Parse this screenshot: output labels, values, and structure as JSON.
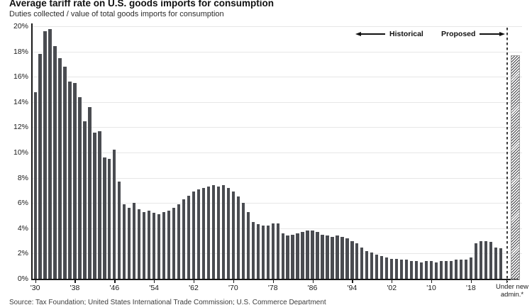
{
  "header": {
    "title": "Average tariff rate on U.S. goods imports for consumption",
    "subtitle": "Duties collected / value of total goods imports for consumption"
  },
  "annotations": {
    "historical_label": "Historical",
    "proposed_label": "Proposed",
    "under_new_admin_line1": "Under new",
    "under_new_admin_line2": "admin.*"
  },
  "footer": {
    "source": "Source: Tax Foundation; United States International Trade Commission; U.S. Commerce Department"
  },
  "colors": {
    "bar": "#4a4c51",
    "hatch": "#3f3f43",
    "gridline": "#e7e7e7",
    "axis": "#1a1a1a",
    "dashed_line": "#3a3a3a",
    "text": "#111111"
  },
  "chart_data": {
    "type": "bar",
    "title": "Average tariff rate on U.S. goods imports for consumption",
    "subtitle": "Duties collected / value of total goods imports for consumption",
    "xlabel": "",
    "ylabel": "",
    "ylim": [
      0,
      20
    ],
    "grid": true,
    "y_tick_labels": [
      "0%",
      "2%",
      "4%",
      "6%",
      "8%",
      "10%",
      "12%",
      "14%",
      "16%",
      "18%",
      "20%"
    ],
    "x_tick_years": [
      1930,
      1938,
      1946,
      1954,
      1962,
      1970,
      1978,
      1986,
      1994,
      2002,
      2010,
      2018
    ],
    "x_tick_labels": [
      "'30",
      "'38",
      "'46",
      "'54",
      "'62",
      "'70",
      "'78",
      "'86",
      "'94",
      "'02",
      "'10",
      "'18"
    ],
    "start_year": 1930,
    "end_year": 2024,
    "values": [
      14.8,
      17.8,
      19.6,
      19.8,
      18.4,
      17.5,
      16.8,
      15.6,
      15.5,
      14.4,
      12.5,
      13.6,
      11.6,
      11.7,
      9.6,
      9.5,
      10.2,
      7.7,
      5.9,
      5.6,
      6.0,
      5.5,
      5.3,
      5.4,
      5.2,
      5.1,
      5.3,
      5.4,
      5.6,
      5.9,
      6.3,
      6.6,
      6.9,
      7.1,
      7.2,
      7.3,
      7.4,
      7.3,
      7.4,
      7.2,
      6.9,
      6.5,
      6.0,
      5.3,
      4.5,
      4.3,
      4.2,
      4.2,
      4.4,
      4.4,
      3.6,
      3.4,
      3.5,
      3.6,
      3.7,
      3.8,
      3.8,
      3.7,
      3.5,
      3.4,
      3.3,
      3.4,
      3.3,
      3.2,
      3.0,
      2.8,
      2.5,
      2.2,
      2.1,
      1.9,
      1.8,
      1.7,
      1.6,
      1.6,
      1.5,
      1.5,
      1.4,
      1.4,
      1.3,
      1.4,
      1.4,
      1.3,
      1.4,
      1.4,
      1.4,
      1.5,
      1.5,
      1.5,
      1.7,
      2.8,
      3.0,
      3.0,
      2.9,
      2.5,
      2.4
    ],
    "proposed": {
      "label": "Under new admin.*",
      "value": 17.7
    }
  }
}
